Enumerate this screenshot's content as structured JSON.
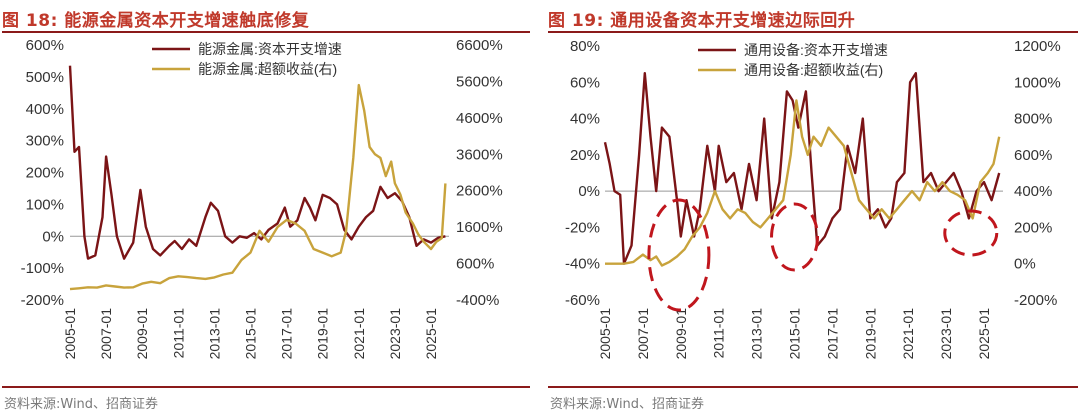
{
  "charts": [
    {
      "title": "图 18:  能源金属资本开支增速触底修复",
      "source": "资料来源:Wind、招商证券",
      "chart_data": {
        "type": "line",
        "x_ticks": [
          "2005-01",
          "2007-01",
          "2009-01",
          "2011-01",
          "2013-01",
          "2015-01",
          "2017-01",
          "2019-01",
          "2021-01",
          "2023-01",
          "2025-01"
        ],
        "x_range": [
          2005.0,
          2026.0
        ],
        "y_left_ticks": [
          "600%",
          "500%",
          "400%",
          "300%",
          "200%",
          "100%",
          "0%",
          "-100%",
          "-200%"
        ],
        "y_left_range": [
          -200,
          600
        ],
        "y_right_ticks": [
          "6600%",
          "5600%",
          "4600%",
          "3600%",
          "2600%",
          "1600%",
          "600%",
          "-400%"
        ],
        "y_right_range": [
          -400,
          6600
        ],
        "legend_position": "top-center",
        "series": [
          {
            "name": "能源金属:资本开支增速",
            "axis": "left",
            "color": "#7b1416",
            "points": [
              [
                2005.0,
                535
              ],
              [
                2005.25,
                265
              ],
              [
                2005.5,
                280
              ],
              [
                2005.8,
                0
              ],
              [
                2006.0,
                -70
              ],
              [
                2006.4,
                -60
              ],
              [
                2006.8,
                60
              ],
              [
                2007.0,
                250
              ],
              [
                2007.3,
                130
              ],
              [
                2007.6,
                0
              ],
              [
                2008.0,
                -70
              ],
              [
                2008.5,
                -20
              ],
              [
                2008.9,
                145
              ],
              [
                2009.2,
                30
              ],
              [
                2009.6,
                -40
              ],
              [
                2010.0,
                -60
              ],
              [
                2010.5,
                -30
              ],
              [
                2010.8,
                -15
              ],
              [
                2011.2,
                -40
              ],
              [
                2011.6,
                -10
              ],
              [
                2012.0,
                -30
              ],
              [
                2012.5,
                60
              ],
              [
                2012.8,
                105
              ],
              [
                2013.2,
                80
              ],
              [
                2013.6,
                0
              ],
              [
                2014.0,
                -20
              ],
              [
                2014.4,
                0
              ],
              [
                2014.8,
                -5
              ],
              [
                2015.2,
                10
              ],
              [
                2015.6,
                -10
              ],
              [
                2016.0,
                20
              ],
              [
                2016.5,
                40
              ],
              [
                2016.9,
                90
              ],
              [
                2017.2,
                30
              ],
              [
                2017.6,
                50
              ],
              [
                2018.0,
                120
              ],
              [
                2018.3,
                90
              ],
              [
                2018.6,
                50
              ],
              [
                2019.0,
                130
              ],
              [
                2019.4,
                120
              ],
              [
                2019.8,
                100
              ],
              [
                2020.2,
                20
              ],
              [
                2020.6,
                -10
              ],
              [
                2021.0,
                30
              ],
              [
                2021.4,
                60
              ],
              [
                2021.8,
                80
              ],
              [
                2022.2,
                155
              ],
              [
                2022.6,
                120
              ],
              [
                2023.0,
                135
              ],
              [
                2023.4,
                110
              ],
              [
                2023.8,
                60
              ],
              [
                2024.2,
                -30
              ],
              [
                2024.6,
                -10
              ],
              [
                2025.0,
                -20
              ],
              [
                2025.4,
                -5
              ],
              [
                2025.8,
                0
              ]
            ]
          },
          {
            "name": "能源金属:超额收益(右)",
            "axis": "right",
            "color": "#c8a33c",
            "points": [
              [
                2005.0,
                -100
              ],
              [
                2005.5,
                -80
              ],
              [
                2006.0,
                -50
              ],
              [
                2006.5,
                -60
              ],
              [
                2007.0,
                0
              ],
              [
                2007.5,
                -30
              ],
              [
                2008.0,
                -60
              ],
              [
                2008.5,
                -50
              ],
              [
                2009.0,
                50
              ],
              [
                2009.5,
                100
              ],
              [
                2010.0,
                60
              ],
              [
                2010.5,
                200
              ],
              [
                2011.0,
                250
              ],
              [
                2011.5,
                230
              ],
              [
                2012.0,
                200
              ],
              [
                2012.5,
                180
              ],
              [
                2013.0,
                220
              ],
              [
                2013.5,
                300
              ],
              [
                2014.0,
                350
              ],
              [
                2014.5,
                700
              ],
              [
                2015.0,
                900
              ],
              [
                2015.5,
                1500
              ],
              [
                2016.0,
                1200
              ],
              [
                2016.5,
                1600
              ],
              [
                2017.0,
                1800
              ],
              [
                2017.5,
                1700
              ],
              [
                2018.0,
                1500
              ],
              [
                2018.5,
                1000
              ],
              [
                2019.0,
                900
              ],
              [
                2019.5,
                800
              ],
              [
                2020.0,
                900
              ],
              [
                2020.3,
                1500
              ],
              [
                2020.7,
                3500
              ],
              [
                2021.0,
                5500
              ],
              [
                2021.3,
                4800
              ],
              [
                2021.6,
                3800
              ],
              [
                2021.9,
                3600
              ],
              [
                2022.2,
                3500
              ],
              [
                2022.5,
                3000
              ],
              [
                2022.8,
                3400
              ],
              [
                2023.0,
                2800
              ],
              [
                2023.3,
                2500
              ],
              [
                2023.6,
                2000
              ],
              [
                2024.0,
                1700
              ],
              [
                2024.3,
                1400
              ],
              [
                2024.6,
                1200
              ],
              [
                2025.0,
                1000
              ],
              [
                2025.3,
                1200
              ],
              [
                2025.6,
                1300
              ],
              [
                2025.8,
                2800
              ]
            ]
          }
        ]
      }
    },
    {
      "title": "图 19:  通用设备资本开支增速边际回升",
      "source": "资料来源:Wind、招商证券",
      "chart_data": {
        "type": "line",
        "x_ticks": [
          "2005-01",
          "2007-01",
          "2009-01",
          "2011-01",
          "2013-01",
          "2015-01",
          "2017-01",
          "2019-01",
          "2021-01",
          "2023-01",
          "2025-01"
        ],
        "x_range": [
          2005.0,
          2026.0
        ],
        "y_left_ticks": [
          "80%",
          "60%",
          "40%",
          "20%",
          "0%",
          "-20%",
          "-40%",
          "-60%"
        ],
        "y_left_range": [
          -60,
          80
        ],
        "y_right_ticks": [
          "1200%",
          "1000%",
          "800%",
          "600%",
          "400%",
          "200%",
          "0%",
          "-200%"
        ],
        "y_right_range": [
          -200,
          1200
        ],
        "legend_position": "top-center",
        "series": [
          {
            "name": "通用设备:资本开支增速",
            "axis": "left",
            "color": "#7b1416",
            "points": [
              [
                2005.0,
                27
              ],
              [
                2005.25,
                15
              ],
              [
                2005.5,
                0
              ],
              [
                2005.8,
                -2
              ],
              [
                2006.0,
                -40
              ],
              [
                2006.4,
                -30
              ],
              [
                2006.8,
                20
              ],
              [
                2007.1,
                65
              ],
              [
                2007.4,
                30
              ],
              [
                2007.7,
                0
              ],
              [
                2008.0,
                35
              ],
              [
                2008.4,
                30
              ],
              [
                2008.8,
                -5
              ],
              [
                2009.0,
                -25
              ],
              [
                2009.3,
                -5
              ],
              [
                2009.7,
                -25
              ],
              [
                2010.0,
                -10
              ],
              [
                2010.4,
                25
              ],
              [
                2010.8,
                0
              ],
              [
                2011.0,
                25
              ],
              [
                2011.4,
                5
              ],
              [
                2011.8,
                10
              ],
              [
                2012.2,
                -10
              ],
              [
                2012.6,
                15
              ],
              [
                2013.0,
                -5
              ],
              [
                2013.4,
                40
              ],
              [
                2013.8,
                -15
              ],
              [
                2014.2,
                5
              ],
              [
                2014.6,
                55
              ],
              [
                2014.9,
                50
              ],
              [
                2015.2,
                35
              ],
              [
                2015.6,
                55
              ],
              [
                2015.9,
                10
              ],
              [
                2016.2,
                -30
              ],
              [
                2016.6,
                -25
              ],
              [
                2017.0,
                -15
              ],
              [
                2017.4,
                -10
              ],
              [
                2017.8,
                25
              ],
              [
                2018.2,
                10
              ],
              [
                2018.6,
                40
              ],
              [
                2019.0,
                -15
              ],
              [
                2019.4,
                -10
              ],
              [
                2019.8,
                -20
              ],
              [
                2020.1,
                -15
              ],
              [
                2020.4,
                5
              ],
              [
                2020.8,
                10
              ],
              [
                2021.1,
                60
              ],
              [
                2021.4,
                65
              ],
              [
                2021.8,
                5
              ],
              [
                2022.2,
                10
              ],
              [
                2022.6,
                0
              ],
              [
                2023.0,
                5
              ],
              [
                2023.4,
                10
              ],
              [
                2023.8,
                0
              ],
              [
                2024.2,
                -15
              ],
              [
                2024.6,
                0
              ],
              [
                2025.0,
                5
              ],
              [
                2025.4,
                -5
              ],
              [
                2025.8,
                10
              ]
            ]
          },
          {
            "name": "通用设备:超额收益(右)",
            "axis": "right",
            "color": "#c8a33c",
            "points": [
              [
                2005.0,
                0
              ],
              [
                2005.5,
                0
              ],
              [
                2006.0,
                0
              ],
              [
                2006.5,
                10
              ],
              [
                2007.0,
                50
              ],
              [
                2007.4,
                20
              ],
              [
                2007.7,
                40
              ],
              [
                2008.0,
                -10
              ],
              [
                2008.4,
                10
              ],
              [
                2008.8,
                40
              ],
              [
                2009.2,
                80
              ],
              [
                2009.6,
                150
              ],
              [
                2010.0,
                200
              ],
              [
                2010.4,
                280
              ],
              [
                2010.8,
                400
              ],
              [
                2011.2,
                300
              ],
              [
                2011.6,
                250
              ],
              [
                2012.0,
                300
              ],
              [
                2012.4,
                280
              ],
              [
                2012.8,
                230
              ],
              [
                2013.2,
                200
              ],
              [
                2013.6,
                250
              ],
              [
                2014.0,
                300
              ],
              [
                2014.4,
                350
              ],
              [
                2014.8,
                600
              ],
              [
                2015.1,
                900
              ],
              [
                2015.4,
                700
              ],
              [
                2015.7,
                600
              ],
              [
                2016.0,
                700
              ],
              [
                2016.4,
                650
              ],
              [
                2016.8,
                750
              ],
              [
                2017.2,
                700
              ],
              [
                2017.6,
                650
              ],
              [
                2018.0,
                500
              ],
              [
                2018.4,
                350
              ],
              [
                2018.8,
                300
              ],
              [
                2019.2,
                250
              ],
              [
                2019.6,
                300
              ],
              [
                2020.0,
                250
              ],
              [
                2020.4,
                300
              ],
              [
                2020.8,
                350
              ],
              [
                2021.2,
                400
              ],
              [
                2021.6,
                350
              ],
              [
                2022.0,
                450
              ],
              [
                2022.4,
                400
              ],
              [
                2022.8,
                450
              ],
              [
                2023.2,
                400
              ],
              [
                2023.6,
                380
              ],
              [
                2024.0,
                350
              ],
              [
                2024.4,
                250
              ],
              [
                2024.8,
                450
              ],
              [
                2025.2,
                500
              ],
              [
                2025.5,
                550
              ],
              [
                2025.8,
                700
              ]
            ]
          }
        ]
      }
    }
  ]
}
